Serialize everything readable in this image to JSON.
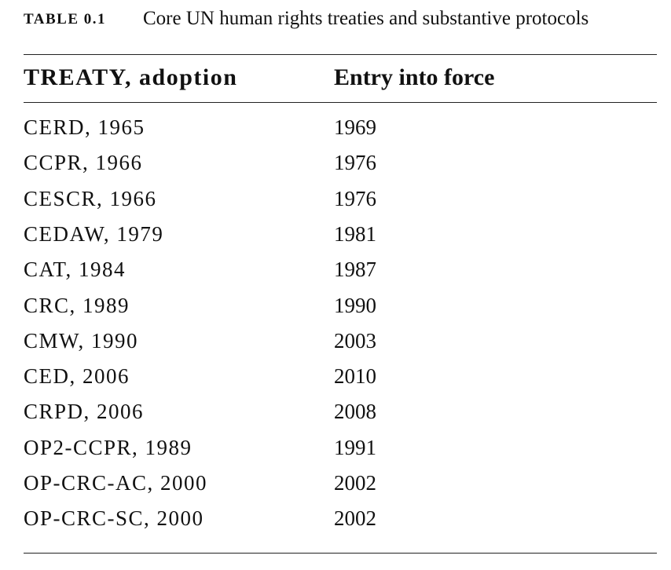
{
  "caption": {
    "label": "TABLE 0.1",
    "title": "Core UN human rights treaties and substantive protocols"
  },
  "table": {
    "header": [
      "TREATY, adoption",
      "Entry into force"
    ],
    "rows": [
      [
        "CERD, 1965",
        "1969"
      ],
      [
        "CCPR, 1966",
        "1976"
      ],
      [
        "CESCR, 1966",
        "1976"
      ],
      [
        "CEDAW, 1979",
        "1981"
      ],
      [
        "CAT, 1984",
        "1987"
      ],
      [
        "CRC, 1989",
        "1990"
      ],
      [
        "CMW, 1990",
        "2003"
      ],
      [
        "CED, 2006",
        "2010"
      ],
      [
        "CRPD, 2006",
        "2008"
      ],
      [
        "OP2-CCPR, 1989",
        "1991"
      ],
      [
        "OP-CRC-AC, 2000",
        "2002"
      ],
      [
        "OP-CRC-SC, 2000",
        "2002"
      ]
    ]
  }
}
